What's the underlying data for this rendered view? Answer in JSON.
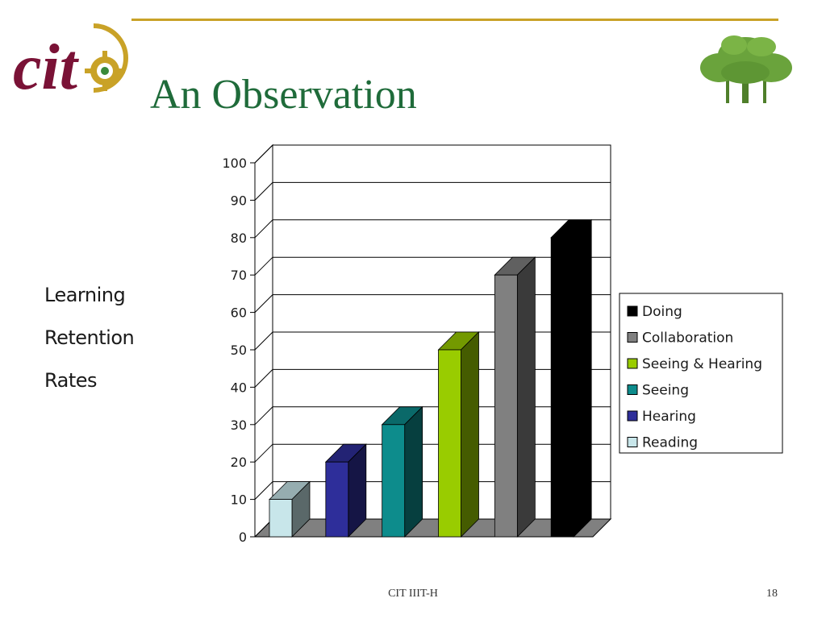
{
  "slide": {
    "title": "An Observation",
    "side_labels": [
      "Learning",
      "Retention",
      "Rates"
    ],
    "footer": "CIT IIIT-H",
    "page_number": "18",
    "logo_text": "cit",
    "colors": {
      "title": "#1f6b3a",
      "rule": "#c9a227",
      "logo": "#7a1236"
    }
  },
  "chart_data": {
    "type": "bar",
    "categories": [
      "Reading",
      "Hearing",
      "Seeing",
      "Seeing & Hearing",
      "Collaboration",
      "Doing"
    ],
    "values": [
      10,
      20,
      30,
      50,
      70,
      80
    ],
    "ylim": [
      0,
      100
    ],
    "yticks": [
      0,
      10,
      20,
      30,
      40,
      50,
      60,
      70,
      80,
      90,
      100
    ],
    "grid": true,
    "three_d": true,
    "legend_position": "right",
    "legend": [
      "Doing",
      "Collaboration",
      "Seeing & Hearing",
      "Seeing",
      "Hearing",
      "Reading"
    ],
    "colors": {
      "Reading": "#c8e6ea",
      "Hearing": "#2e2e9a",
      "Seeing": "#0d8c8c",
      "Seeing & Hearing": "#99cc00",
      "Collaboration": "#808080",
      "Doing": "#000000"
    }
  }
}
